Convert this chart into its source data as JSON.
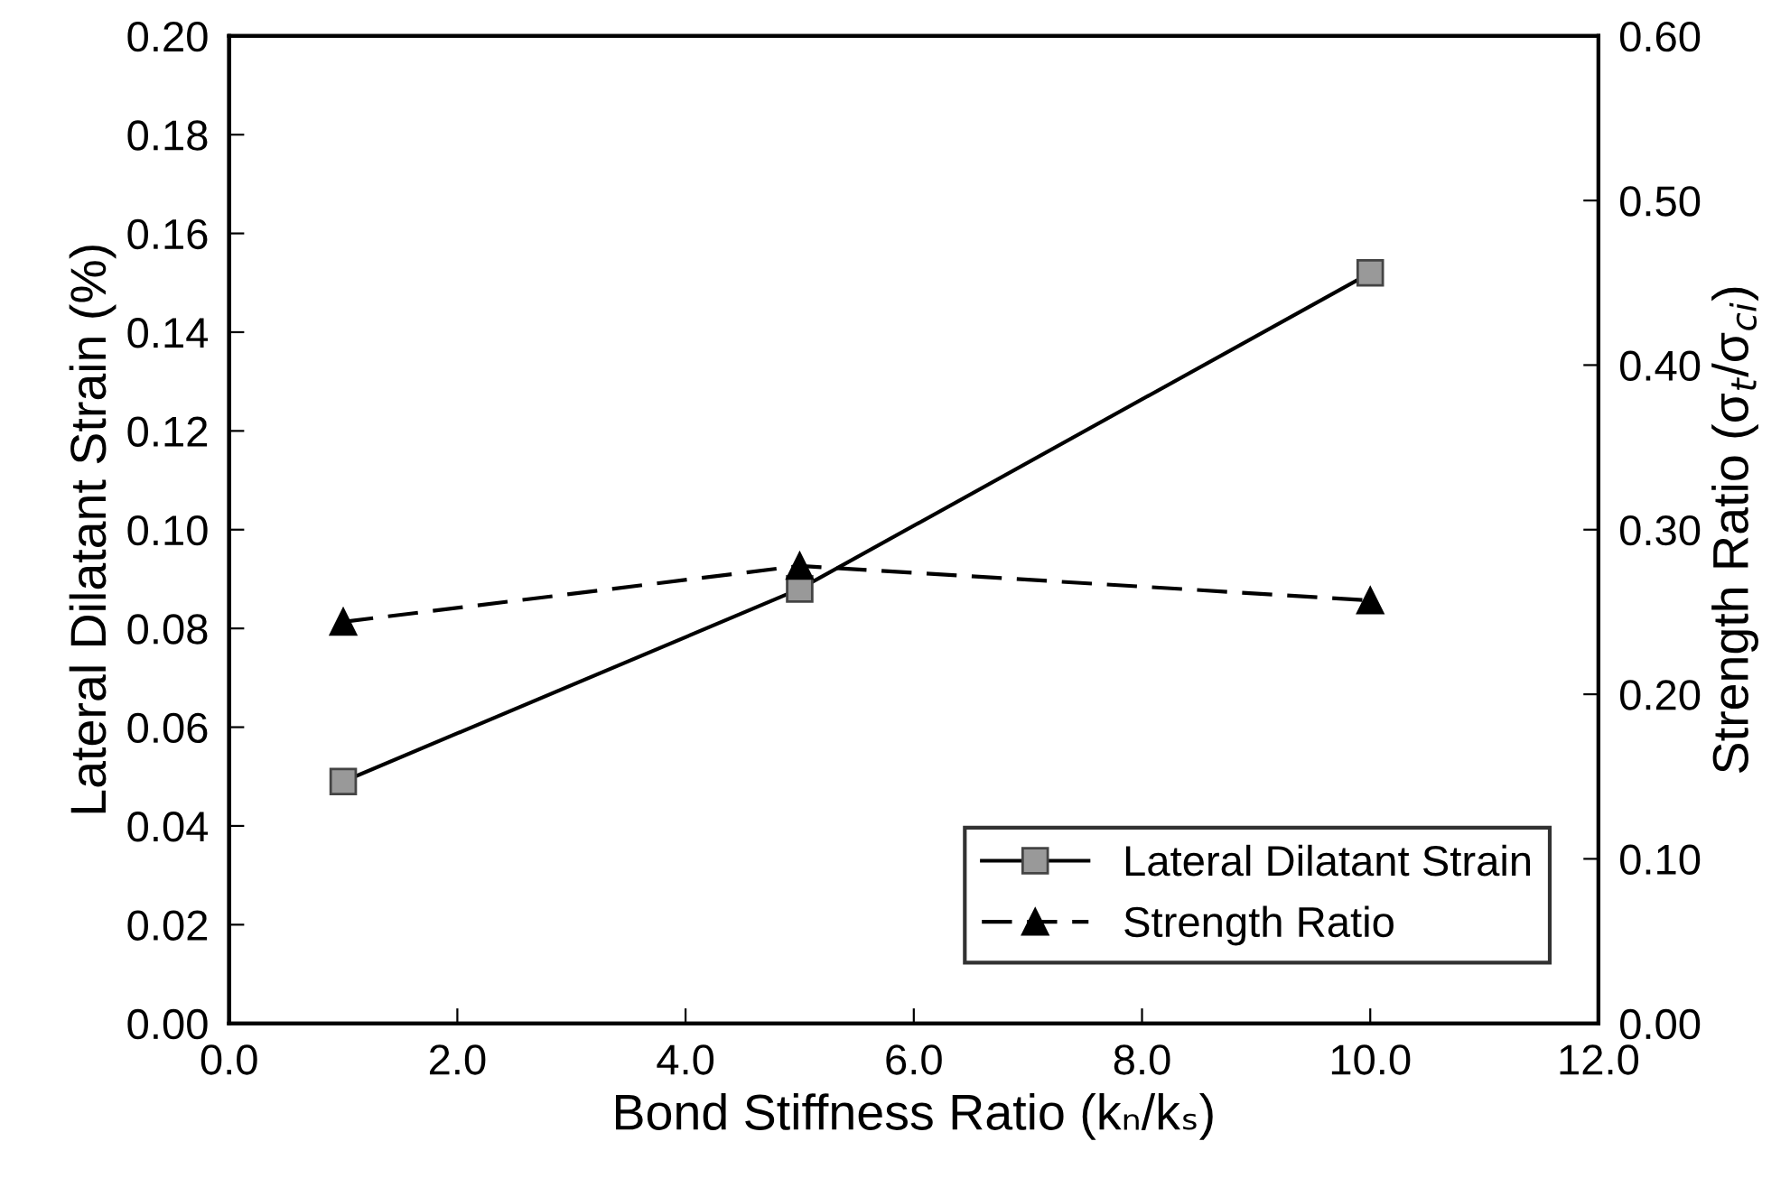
{
  "chart_data": {
    "type": "line",
    "xlabel": "Bond Stiffness Ratio (kₙ/kₛ)",
    "ylabel": "Lateral Dilatant Strain (%)",
    "y2label": "Strength Ratio (σ$_{t}$/σ$_{ci}$)",
    "x": [
      1,
      5,
      10
    ],
    "series": [
      {
        "name": "Lateral Dilatant Strain",
        "color": "#000000",
        "values": [
          0.049,
          0.088,
          0.152
        ],
        "marker": "square",
        "line_style": "solid"
      },
      {
        "name": "Strength Ratio",
        "color": "#000000",
        "values": [
          0.244,
          0.278,
          0.257
        ],
        "marker": "triangle",
        "line_style": "dashed",
        "axis": "y2"
      }
    ],
    "xlim": [
      0,
      12
    ],
    "xticks": [
      {
        "value": 0,
        "label": "0.0"
      },
      {
        "value": 2,
        "label": "2.0"
      },
      {
        "value": 4,
        "label": "4.0"
      },
      {
        "value": 6,
        "label": "6.0"
      },
      {
        "value": 8,
        "label": "8.0"
      },
      {
        "value": 10,
        "label": "10.0"
      },
      {
        "value": 12,
        "label": "12.0"
      }
    ],
    "ylim": [
      0,
      0.2
    ],
    "yticks": [
      {
        "value": 0,
        "label": "0.00"
      },
      {
        "value": 0.02,
        "label": "0.02"
      },
      {
        "value": 0.04,
        "label": "0.04"
      },
      {
        "value": 0.06,
        "label": "0.06"
      },
      {
        "value": 0.08,
        "label": "0.08"
      },
      {
        "value": 0.1,
        "label": "0.10"
      },
      {
        "value": 0.12,
        "label": "0.12"
      },
      {
        "value": 0.14,
        "label": "0.14"
      },
      {
        "value": 0.16,
        "label": "0.16"
      },
      {
        "value": 0.18,
        "label": "0.18"
      },
      {
        "value": 0.2,
        "label": "0.20"
      }
    ],
    "y2lim": [
      0,
      0.6
    ],
    "y2ticks": [
      {
        "value": 0,
        "label": "0.00"
      },
      {
        "value": 0.1,
        "label": "0.10"
      },
      {
        "value": 0.2,
        "label": "0.20"
      },
      {
        "value": 0.3,
        "label": "0.30"
      },
      {
        "value": 0.4,
        "label": "0.40"
      },
      {
        "value": 0.5,
        "label": "0.50"
      },
      {
        "value": 0.6,
        "label": "0.60"
      }
    ],
    "grid": false,
    "legend": "bottom right"
  }
}
